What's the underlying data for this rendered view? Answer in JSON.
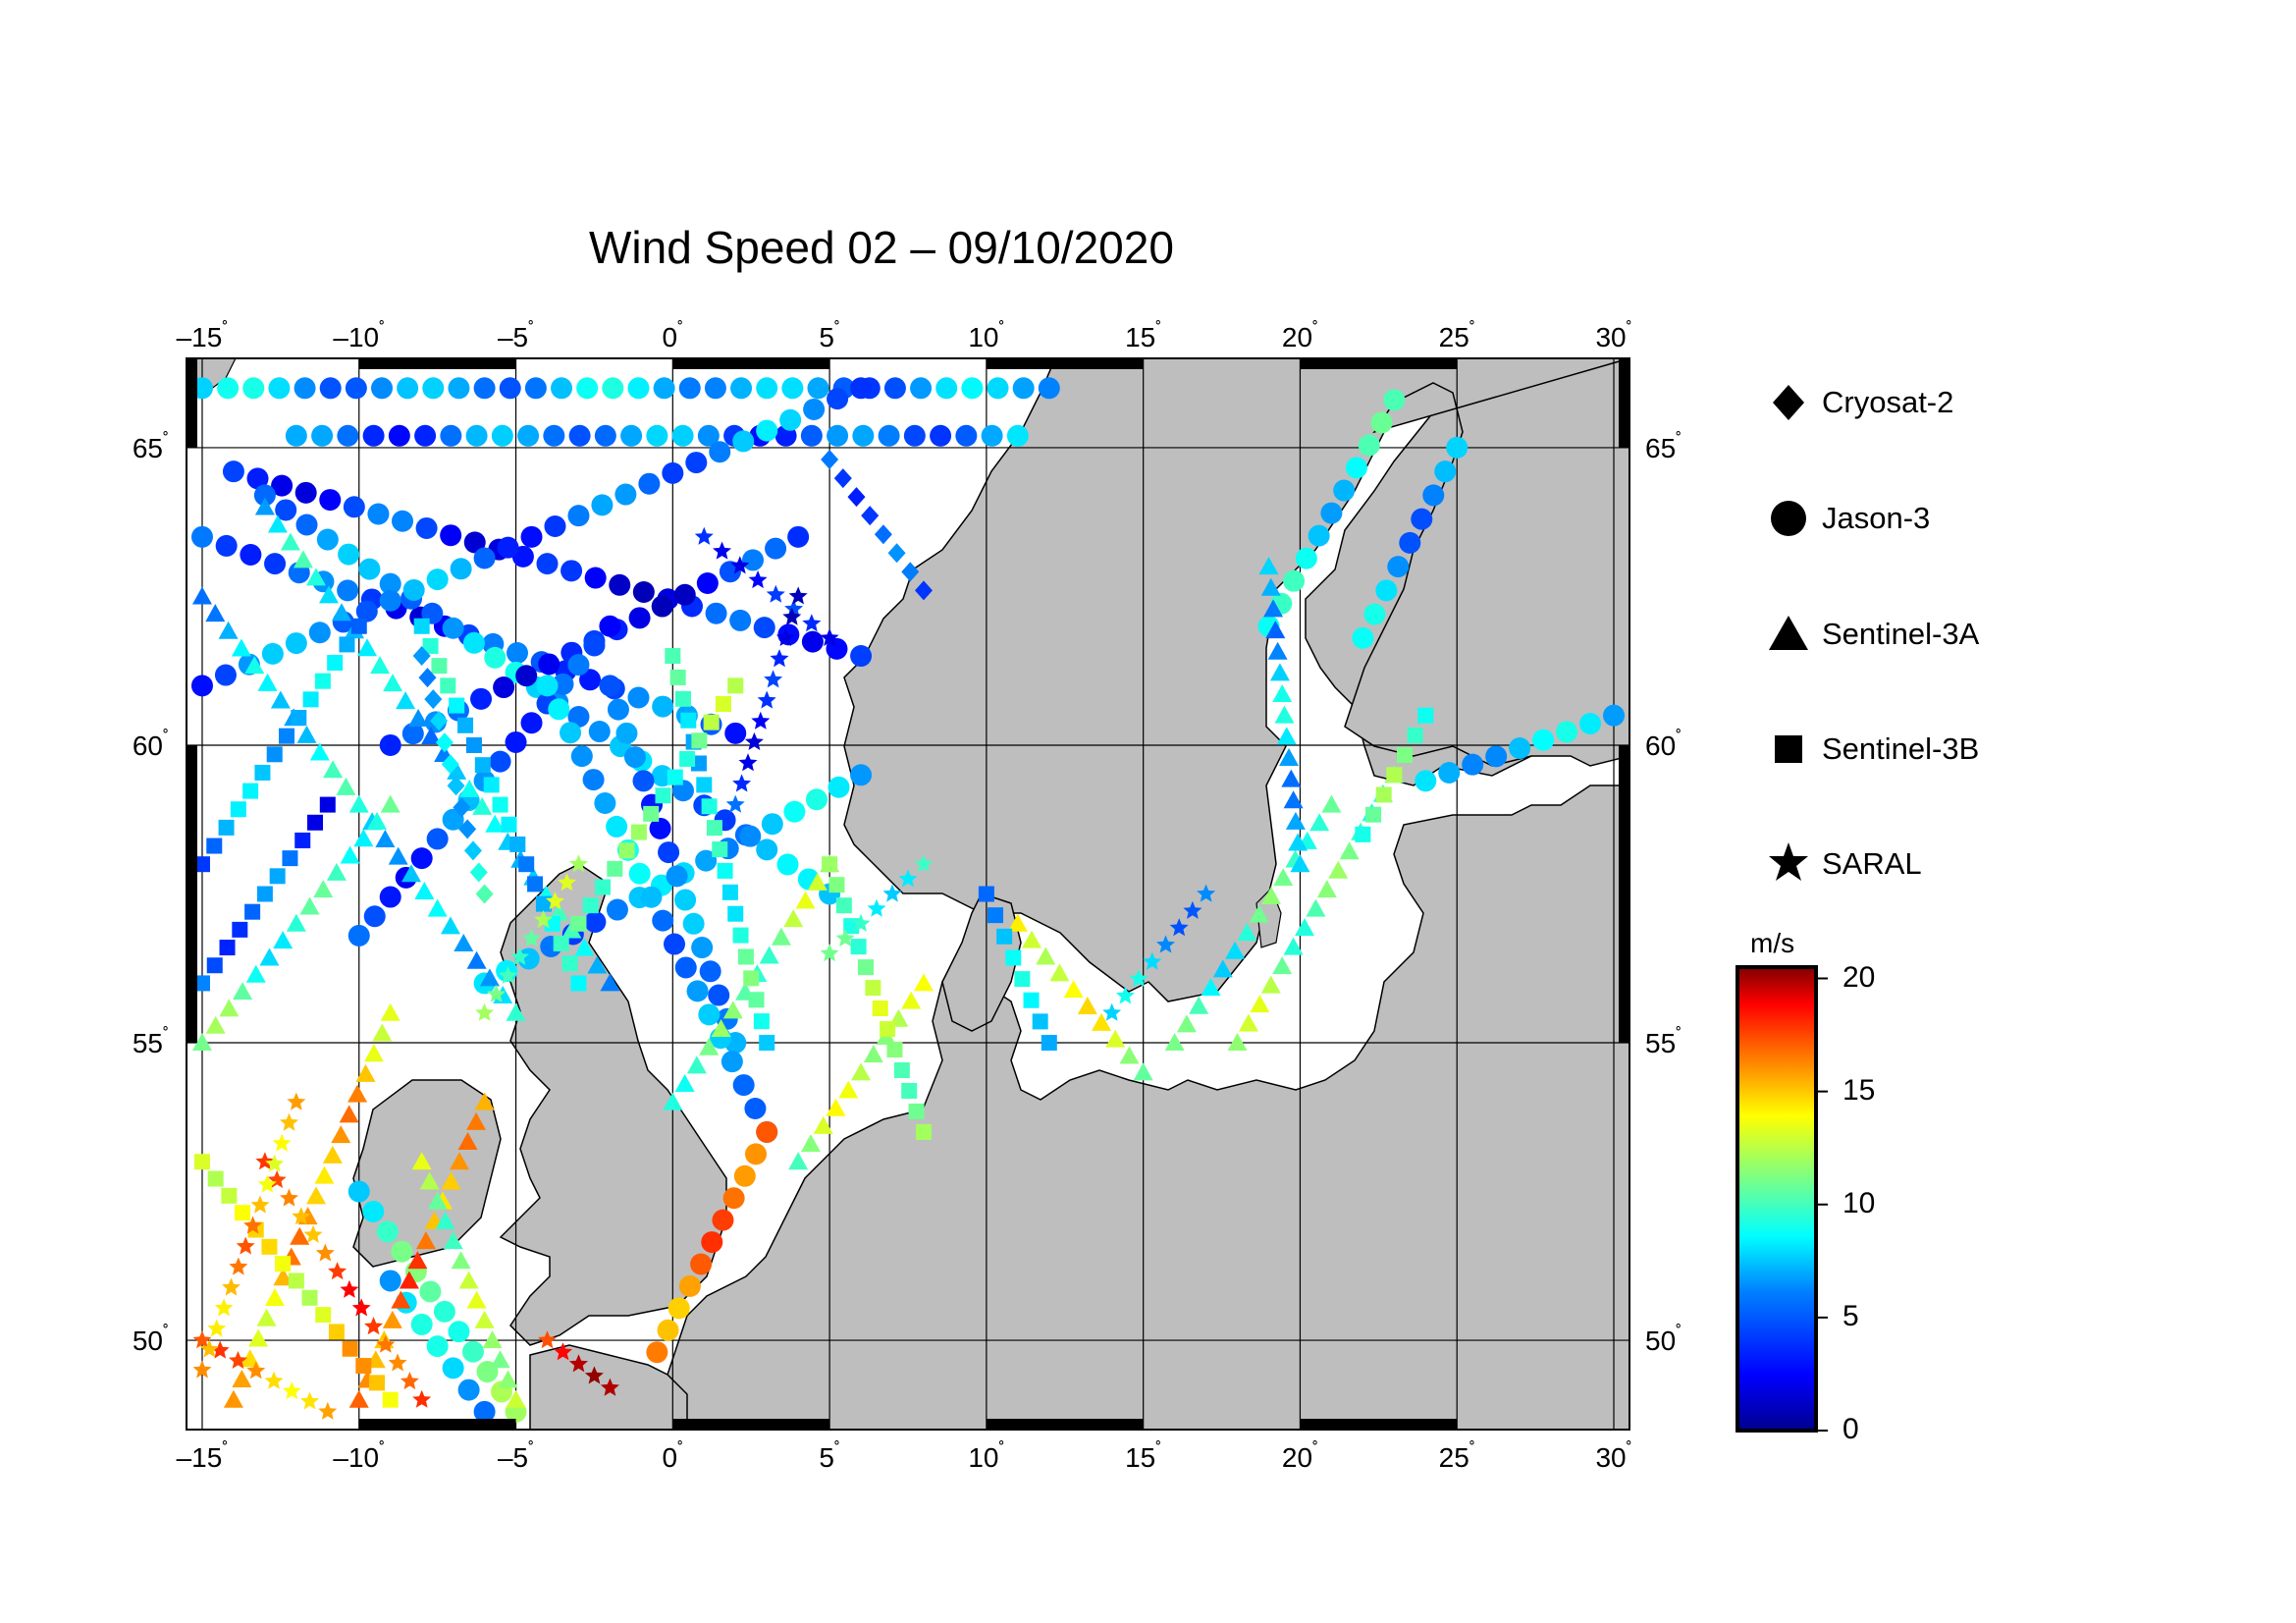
{
  "title": "Wind Speed 02 – 09/10/2020",
  "map": {
    "lon_range": [
      -15.5,
      30.5
    ],
    "lat_range": [
      48.5,
      66.5
    ],
    "lon_ticks": [
      -15,
      -10,
      -5,
      0,
      5,
      10,
      15,
      20,
      25,
      30
    ],
    "lon_tick_labels": [
      "–15",
      "–10",
      "–5",
      "0",
      "5",
      "10",
      "15",
      "20",
      "25",
      "30"
    ],
    "lat_ticks": [
      50,
      55,
      60,
      65
    ],
    "lat_tick_labels": [
      "50",
      "55",
      "60",
      "65"
    ],
    "degree_symbol": "˚",
    "land_color": "#bebebe",
    "sea_color": "#ffffff",
    "grid": true
  },
  "legend": {
    "items": [
      {
        "label": "Cryosat-2",
        "icon": "diamond-icon"
      },
      {
        "label": "Jason-3",
        "icon": "circle-icon"
      },
      {
        "label": "Sentinel-3A",
        "icon": "triangle-icon"
      },
      {
        "label": "Sentinel-3B",
        "icon": "square-icon"
      },
      {
        "label": "SARAL",
        "icon": "star-icon"
      }
    ]
  },
  "colorbar": {
    "unit": "m/s",
    "min": 0,
    "max": 20.5,
    "ticks": [
      0,
      5,
      10,
      15,
      20
    ],
    "tick_labels": [
      "0",
      "5",
      "10",
      "15",
      "20"
    ],
    "colormap": [
      "#00008f",
      "#0000ff",
      "#0080ff",
      "#00ffff",
      "#80ff80",
      "#ffff00",
      "#ff8000",
      "#ff0000",
      "#800000"
    ]
  },
  "tracks": [
    {
      "satellite": "Jason-3",
      "from": [
        -15,
        66
      ],
      "to": [
        12,
        66
      ],
      "speed": 6
    },
    {
      "satellite": "Jason-3",
      "from": [
        -12,
        65.2
      ],
      "to": [
        11,
        65.2
      ],
      "speed": 5
    },
    {
      "satellite": "Jason-3",
      "from": [
        -14,
        64.6
      ],
      "to": [
        6,
        61.5
      ],
      "speed": 3
    },
    {
      "satellite": "Jason-3",
      "from": [
        -15,
        63.5
      ],
      "to": [
        2,
        60.2
      ],
      "speed": 4
    },
    {
      "satellite": "Jason-3",
      "from": [
        -13,
        64.2
      ],
      "to": [
        5,
        57.5
      ],
      "speed": 6
    },
    {
      "satellite": "Jason-3",
      "from": [
        -15,
        61
      ],
      "to": [
        6,
        66
      ],
      "speed": 5
    },
    {
      "satellite": "Jason-3",
      "from": [
        -9,
        60
      ],
      "to": [
        4,
        63.5
      ],
      "speed": 3
    },
    {
      "satellite": "Jason-3",
      "from": [
        -6,
        56
      ],
      "to": [
        6,
        59.5
      ],
      "speed": 6
    },
    {
      "satellite": "Jason-3",
      "from": [
        -10,
        56.8
      ],
      "to": [
        -2,
        62
      ],
      "speed": 4
    },
    {
      "satellite": "Jason-3",
      "from": [
        2,
        55
      ],
      "to": [
        -2,
        61
      ],
      "speed": 5
    },
    {
      "satellite": "Jason-3",
      "from": [
        3,
        53.5
      ],
      "to": [
        -4,
        61
      ],
      "speed": 6
    },
    {
      "satellite": "Jason-3",
      "from": [
        -10,
        52.5
      ],
      "to": [
        -5,
        48.8
      ],
      "speed": 9
    },
    {
      "satellite": "Jason-3",
      "from": [
        -9,
        51
      ],
      "to": [
        -6,
        48.8
      ],
      "speed": 6
    },
    {
      "satellite": "Jason-3",
      "from": [
        23,
        65.8
      ],
      "to": [
        19,
        62
      ],
      "speed": 8
    },
    {
      "satellite": "Jason-3",
      "from": [
        25,
        65
      ],
      "to": [
        22,
        61.8
      ],
      "speed": 6
    },
    {
      "satellite": "Jason-3",
      "from": [
        24,
        59.4
      ],
      "to": [
        30,
        60.5
      ],
      "speed": 6
    },
    {
      "satellite": "Jason-3",
      "from": [
        3,
        53.5
      ],
      "to": [
        -0.5,
        49.8
      ],
      "speed": 16
    },
    {
      "satellite": "Sentinel-3A",
      "from": [
        -15,
        62.5
      ],
      "to": [
        -5,
        55.5
      ],
      "speed": 7
    },
    {
      "satellite": "Sentinel-3A",
      "from": [
        -13,
        64
      ],
      "to": [
        -2,
        56
      ],
      "speed": 7
    },
    {
      "satellite": "Sentinel-3A",
      "from": [
        -15,
        55
      ],
      "to": [
        -9,
        59
      ],
      "speed": 9
    },
    {
      "satellite": "Sentinel-3A",
      "from": [
        -14,
        49
      ],
      "to": [
        -9,
        55.5
      ],
      "speed": 14
    },
    {
      "satellite": "Sentinel-3A",
      "from": [
        -10,
        49
      ],
      "to": [
        -6,
        54
      ],
      "speed": 15
    },
    {
      "satellite": "Sentinel-3A",
      "from": [
        -5,
        49
      ],
      "to": [
        -8,
        53
      ],
      "speed": 11
    },
    {
      "satellite": "Sentinel-3A",
      "from": [
        0,
        54
      ],
      "to": [
        5,
        58
      ],
      "speed": 10
    },
    {
      "satellite": "Sentinel-3A",
      "from": [
        4,
        53
      ],
      "to": [
        8,
        56
      ],
      "speed": 11
    },
    {
      "satellite": "Sentinel-3A",
      "from": [
        18,
        55
      ],
      "to": [
        23,
        59.5
      ],
      "speed": 10
    },
    {
      "satellite": "Sentinel-3A",
      "from": [
        16,
        55
      ],
      "to": [
        21,
        59
      ],
      "speed": 9
    },
    {
      "satellite": "Sentinel-3A",
      "from": [
        19,
        63
      ],
      "to": [
        20,
        58
      ],
      "speed": 6
    },
    {
      "satellite": "Sentinel-3A",
      "from": [
        11,
        57
      ],
      "to": [
        15,
        54.5
      ],
      "speed": 12
    },
    {
      "satellite": "Sentinel-3B",
      "from": [
        -15,
        53
      ],
      "to": [
        -9,
        49
      ],
      "speed": 13
    },
    {
      "satellite": "Sentinel-3B",
      "from": [
        -15,
        58
      ],
      "to": [
        -10,
        62
      ],
      "speed": 6
    },
    {
      "satellite": "Sentinel-3B",
      "from": [
        -8,
        62
      ],
      "to": [
        -3,
        56
      ],
      "speed": 7
    },
    {
      "satellite": "Sentinel-3B",
      "from": [
        0,
        61.5
      ],
      "to": [
        3,
        55
      ],
      "speed": 8
    },
    {
      "satellite": "Sentinel-3B",
      "from": [
        5,
        58
      ],
      "to": [
        8,
        53.5
      ],
      "speed": 10
    },
    {
      "satellite": "Sentinel-3B",
      "from": [
        -15,
        56
      ],
      "to": [
        -11,
        59
      ],
      "speed": 4
    },
    {
      "satellite": "Sentinel-3B",
      "from": [
        -3,
        57
      ],
      "to": [
        2,
        61
      ],
      "speed": 10
    },
    {
      "satellite": "Sentinel-3B",
      "from": [
        10,
        57.5
      ],
      "to": [
        12,
        55
      ],
      "speed": 7
    },
    {
      "satellite": "Sentinel-3B",
      "from": [
        22,
        58.5
      ],
      "to": [
        24,
        60.5
      ],
      "speed": 9
    },
    {
      "satellite": "SARAL",
      "from": [
        -15,
        50
      ],
      "to": [
        -11,
        48.8
      ],
      "speed": 15
    },
    {
      "satellite": "SARAL",
      "from": [
        -13,
        53
      ],
      "to": [
        -8,
        49
      ],
      "speed": 16
    },
    {
      "satellite": "SARAL",
      "from": [
        -15,
        49.5
      ],
      "to": [
        -12,
        54
      ],
      "speed": 14
    },
    {
      "satellite": "SARAL",
      "from": [
        1,
        63.5
      ],
      "to": [
        5,
        61.8
      ],
      "speed": 3
    },
    {
      "satellite": "SARAL",
      "from": [
        4,
        62.5
      ],
      "to": [
        2,
        59
      ],
      "speed": 3
    },
    {
      "satellite": "SARAL",
      "from": [
        -4,
        50
      ],
      "to": [
        -2,
        49.2
      ],
      "speed": 18
    },
    {
      "satellite": "SARAL",
      "from": [
        14,
        55.5
      ],
      "to": [
        17,
        57.5
      ],
      "speed": 6
    },
    {
      "satellite": "SARAL",
      "from": [
        5,
        56.5
      ],
      "to": [
        8,
        58
      ],
      "speed": 9
    },
    {
      "satellite": "SARAL",
      "from": [
        -6,
        55.5
      ],
      "to": [
        -3,
        58
      ],
      "speed": 10
    },
    {
      "satellite": "Cryosat-2",
      "from": [
        5,
        64.8
      ],
      "to": [
        8,
        62.6
      ],
      "speed": 4
    },
    {
      "satellite": "Cryosat-2",
      "from": [
        -8,
        61.5
      ],
      "to": [
        -6,
        57.5
      ],
      "speed": 7
    }
  ]
}
